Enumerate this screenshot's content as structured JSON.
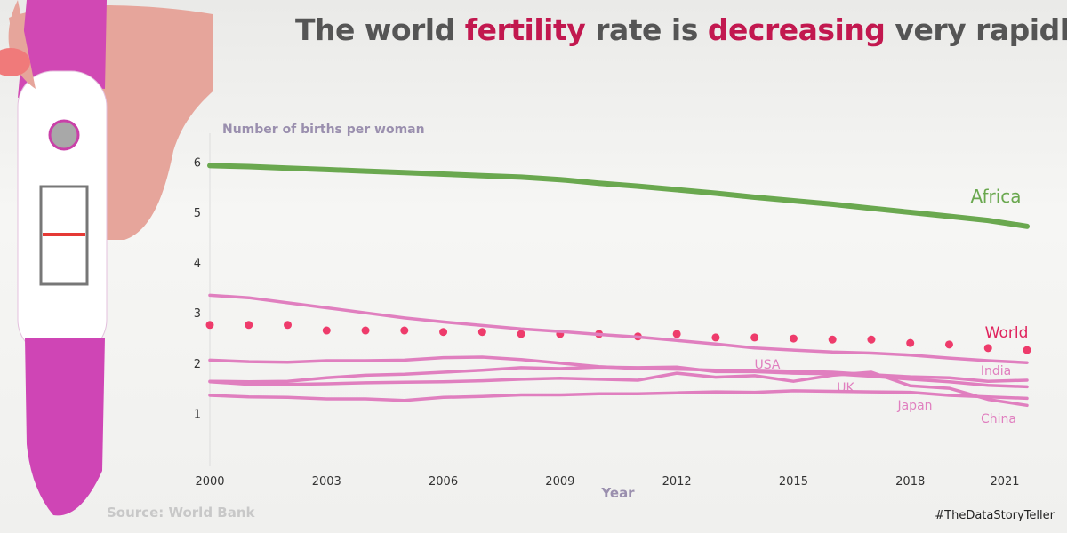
{
  "title": {
    "part1": "The world ",
    "hl1": "fertility",
    "part2": " rate is ",
    "hl2": "decreasing",
    "part3": " very rapidly"
  },
  "source": "Source: World Bank",
  "hashtag": "#TheDataStoryTeller",
  "colors": {
    "highlight": "#c2184f",
    "africa": "#6aa84f",
    "world": "#ee3b6b",
    "countries": "#e07fbf"
  },
  "chart_data": {
    "type": "line",
    "ylabel": "Number of births per woman",
    "xlabel": "Year",
    "xticks": [
      2000,
      2003,
      2006,
      2009,
      2012,
      2015,
      2018,
      2021
    ],
    "yticks": [
      1,
      2,
      3,
      4,
      5,
      6
    ],
    "xlim": [
      2000,
      2021
    ],
    "ylim": [
      0,
      6
    ],
    "grid": false,
    "x": [
      2000,
      2001,
      2002,
      2003,
      2004,
      2005,
      2006,
      2007,
      2008,
      2009,
      2010,
      2011,
      2012,
      2013,
      2014,
      2015,
      2016,
      2017,
      2018,
      2019,
      2020,
      2021
    ],
    "series": [
      {
        "name": "Africa",
        "style": "line",
        "color": "#6aa84f",
        "values": [
          5.93,
          5.91,
          5.88,
          5.85,
          5.82,
          5.79,
          5.76,
          5.73,
          5.7,
          5.65,
          5.58,
          5.52,
          5.45,
          5.38,
          5.3,
          5.23,
          5.16,
          5.08,
          5.0,
          4.92,
          4.84,
          4.72
        ]
      },
      {
        "name": "World",
        "style": "dots",
        "color": "#ee3b6b",
        "values": [
          2.76,
          2.76,
          2.76,
          2.65,
          2.65,
          2.65,
          2.62,
          2.62,
          2.58,
          2.58,
          2.58,
          2.53,
          2.58,
          2.51,
          2.51,
          2.49,
          2.47,
          2.47,
          2.4,
          2.37,
          2.3,
          2.26
        ]
      },
      {
        "name": "India",
        "style": "line",
        "color": "#e07fbf",
        "values": [
          3.35,
          3.3,
          3.2,
          3.1,
          3.0,
          2.9,
          2.82,
          2.75,
          2.68,
          2.63,
          2.57,
          2.52,
          2.45,
          2.38,
          2.3,
          2.26,
          2.22,
          2.2,
          2.16,
          2.1,
          2.05,
          2.01
        ]
      },
      {
        "name": "USA",
        "style": "line",
        "color": "#e07fbf",
        "values": [
          2.06,
          2.03,
          2.02,
          2.05,
          2.05,
          2.06,
          2.11,
          2.12,
          2.07,
          2.0,
          1.93,
          1.89,
          1.88,
          1.86,
          1.86,
          1.84,
          1.82,
          1.77,
          1.73,
          1.71,
          1.64,
          1.66
        ]
      },
      {
        "name": "UK",
        "style": "line",
        "color": "#e07fbf",
        "values": [
          1.64,
          1.63,
          1.64,
          1.71,
          1.76,
          1.78,
          1.82,
          1.86,
          1.91,
          1.89,
          1.92,
          1.91,
          1.92,
          1.83,
          1.83,
          1.8,
          1.79,
          1.74,
          1.68,
          1.63,
          1.56,
          1.53
        ]
      },
      {
        "name": "China",
        "style": "line",
        "color": "#e07fbf",
        "values": [
          1.63,
          1.58,
          1.58,
          1.59,
          1.61,
          1.62,
          1.63,
          1.65,
          1.68,
          1.7,
          1.68,
          1.66,
          1.8,
          1.72,
          1.75,
          1.64,
          1.76,
          1.82,
          1.55,
          1.5,
          1.28,
          1.16
        ]
      },
      {
        "name": "Japan",
        "style": "line",
        "color": "#e07fbf",
        "values": [
          1.36,
          1.33,
          1.32,
          1.29,
          1.29,
          1.26,
          1.32,
          1.34,
          1.37,
          1.37,
          1.39,
          1.39,
          1.41,
          1.43,
          1.42,
          1.45,
          1.44,
          1.43,
          1.42,
          1.36,
          1.33,
          1.3
        ]
      }
    ]
  }
}
